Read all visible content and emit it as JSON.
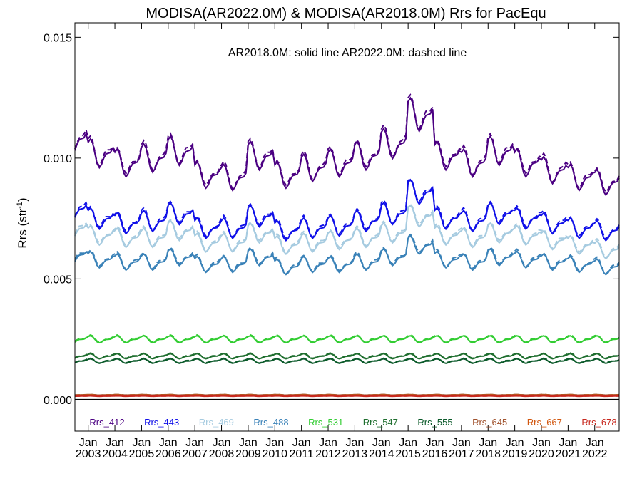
{
  "chart_data": {
    "type": "line",
    "title": "MODISA(AR2022.0M) & MODISA(AR2018.0M)  Rrs for PacEqu",
    "subtitle": "AR2018.0M: solid line   AR2022.0M: dashed line",
    "ylabel_base": "Rrs (str",
    "ylabel_sup": "-1",
    "ylabel_close": ")",
    "xlim": [
      "2002-07",
      "2022-12"
    ],
    "ylim": [
      -0.0013,
      0.0156
    ],
    "yticks": [
      "0.000",
      "0.005",
      "0.010",
      "0.015"
    ],
    "ytick_values": [
      0.0,
      0.005,
      0.01,
      0.015
    ],
    "xticks": [
      {
        "m": "Jan",
        "y": "2003"
      },
      {
        "m": "Jan",
        "y": "2004"
      },
      {
        "m": "Jan",
        "y": "2005"
      },
      {
        "m": "Jan",
        "y": "2006"
      },
      {
        "m": "Jan",
        "y": "2007"
      },
      {
        "m": "Jan",
        "y": "2008"
      },
      {
        "m": "Jan",
        "y": "2009"
      },
      {
        "m": "Jan",
        "y": "2010"
      },
      {
        "m": "Jan",
        "y": "2011"
      },
      {
        "m": "Jan",
        "y": "2012"
      },
      {
        "m": "Jan",
        "y": "2013"
      },
      {
        "m": "Jan",
        "y": "2014"
      },
      {
        "m": "Jan",
        "y": "2015"
      },
      {
        "m": "Jan",
        "y": "2016"
      },
      {
        "m": "Jan",
        "y": "2017"
      },
      {
        "m": "Jan",
        "y": "2018"
      },
      {
        "m": "Jan",
        "y": "2019"
      },
      {
        "m": "Jan",
        "y": "2020"
      },
      {
        "m": "Jan",
        "y": "2021"
      },
      {
        "m": "Jan",
        "y": "2022"
      }
    ],
    "series": [
      {
        "name": "Rrs_412",
        "color": "#4b0082",
        "annual_mean": [
          0.0108,
          0.0102,
          0.0098,
          0.01,
          0.0103,
          0.0093,
          0.0092,
          0.0101,
          0.0093,
          0.0096,
          0.0098,
          0.0101,
          0.0106,
          0.0118,
          0.0101,
          0.0098,
          0.0103,
          0.0098,
          0.0095,
          0.0092,
          0.009
        ]
      },
      {
        "name": "Rrs_443",
        "color": "#1010e8",
        "annual_mean": [
          0.0079,
          0.0075,
          0.0073,
          0.0074,
          0.0077,
          0.0071,
          0.0071,
          0.0076,
          0.007,
          0.0071,
          0.0072,
          0.0074,
          0.0077,
          0.0086,
          0.0075,
          0.0074,
          0.0077,
          0.0075,
          0.0073,
          0.0071,
          0.007
        ]
      },
      {
        "name": "Rrs_469",
        "color": "#a6cbe0",
        "annual_mean": [
          0.0071,
          0.0068,
          0.0067,
          0.0067,
          0.007,
          0.0065,
          0.0065,
          0.0069,
          0.0064,
          0.0065,
          0.0066,
          0.0067,
          0.0069,
          0.0076,
          0.0068,
          0.0067,
          0.0069,
          0.0068,
          0.0066,
          0.0064,
          0.0062
        ]
      },
      {
        "name": "Rrs_488",
        "color": "#3a82b8",
        "annual_mean": [
          0.006,
          0.0058,
          0.0057,
          0.0057,
          0.0059,
          0.0056,
          0.0056,
          0.0059,
          0.0055,
          0.0056,
          0.0056,
          0.0057,
          0.0059,
          0.0064,
          0.0058,
          0.0057,
          0.0059,
          0.0058,
          0.0057,
          0.0056,
          0.0055
        ]
      },
      {
        "name": "Rrs_531",
        "color": "#32cd32",
        "annual_mean": [
          0.0025,
          0.0025,
          0.0025,
          0.0025,
          0.0025,
          0.0025,
          0.0025,
          0.0025,
          0.0025,
          0.0025,
          0.0025,
          0.0025,
          0.0025,
          0.0025,
          0.0025,
          0.0025,
          0.0025,
          0.0025,
          0.0025,
          0.0025,
          0.0025
        ]
      },
      {
        "name": "Rrs_547",
        "color": "#1e6e2e",
        "annual_mean": [
          0.0018,
          0.0018,
          0.0018,
          0.0018,
          0.0018,
          0.0018,
          0.0018,
          0.0018,
          0.0018,
          0.0018,
          0.0018,
          0.0018,
          0.0018,
          0.0018,
          0.0018,
          0.0018,
          0.0018,
          0.0018,
          0.0018,
          0.0018,
          0.0018
        ]
      },
      {
        "name": "Rrs_555",
        "color": "#0b5a2a",
        "annual_mean": [
          0.0016,
          0.0016,
          0.0016,
          0.0016,
          0.0016,
          0.0016,
          0.0016,
          0.0016,
          0.0016,
          0.0016,
          0.0016,
          0.0016,
          0.0016,
          0.0016,
          0.0016,
          0.0016,
          0.0016,
          0.0016,
          0.0016,
          0.0016,
          0.0016
        ]
      },
      {
        "name": "Rrs_645",
        "color": "#a0522d",
        "annual_mean": [
          0.0002,
          0.0002,
          0.0002,
          0.0002,
          0.0002,
          0.0002,
          0.0002,
          0.0002,
          0.0002,
          0.0002,
          0.0002,
          0.0002,
          0.0002,
          0.0002,
          0.0002,
          0.0002,
          0.0002,
          0.0002,
          0.0002,
          0.0002,
          0.0002
        ]
      },
      {
        "name": "Rrs_667",
        "color": "#d2570f",
        "annual_mean": [
          0.00018,
          0.00018,
          0.00018,
          0.00018,
          0.00018,
          0.00018,
          0.00018,
          0.00018,
          0.00018,
          0.00018,
          0.00018,
          0.00018,
          0.00018,
          0.00018,
          0.00018,
          0.00018,
          0.00018,
          0.00018,
          0.00018,
          0.00018,
          0.00018
        ]
      },
      {
        "name": "Rrs_678",
        "color": "#c8281e",
        "annual_mean": [
          0.00015,
          0.00015,
          0.00015,
          0.00015,
          0.00015,
          0.00015,
          0.00015,
          0.00015,
          0.00015,
          0.00015,
          0.00015,
          0.00015,
          0.00015,
          0.00015,
          0.00015,
          0.00015,
          0.00015,
          0.00015,
          0.00015,
          0.00015,
          0.00015
        ]
      }
    ],
    "zero_line": true,
    "grid": false,
    "legend_placement": "bottom-inside"
  }
}
